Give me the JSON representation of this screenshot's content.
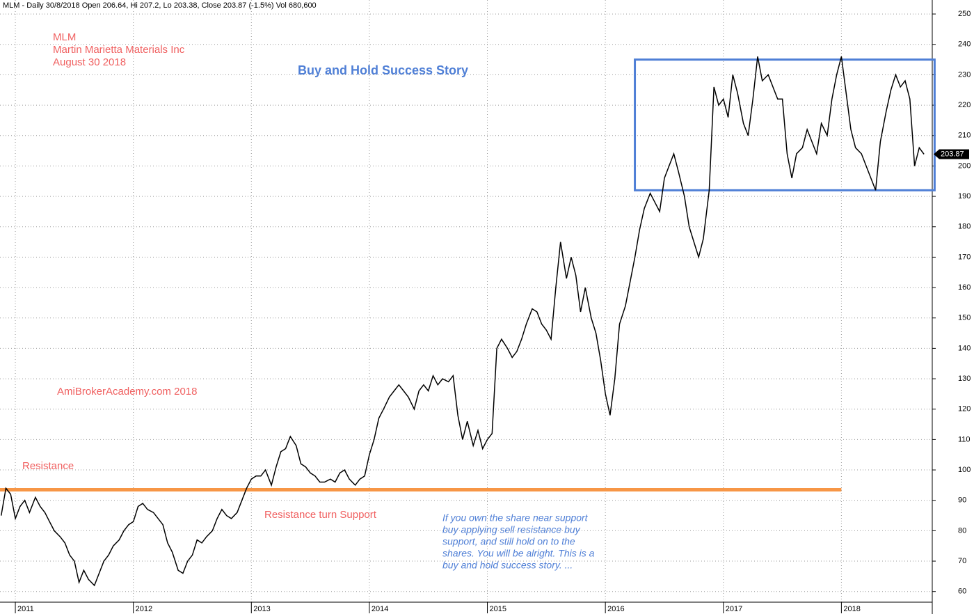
{
  "chart_data": {
    "type": "line",
    "title": "MLM - Daily 30/8/2018 Open 206.64, Hi 207.2, Lo 203.38, Close 203.87 (-1.5%) Vol 680,600",
    "annotations": {
      "symbol": "MLM",
      "company": "Martin Marietta Materials Inc",
      "date": "August 30 2018",
      "headline": "Buy and Hold Success Story",
      "site": "AmiBrokerAcademy.com  2018",
      "resistance": "Resistance",
      "support": "Resistance turn Support",
      "note": [
        "If you own the share near support",
        "buy applying sell resistance buy",
        "support, and still hold on to the",
        "shares. You will be alright. This is a",
        "buy and hold success story. ..."
      ]
    },
    "last_value": 203.87,
    "resistance_line": {
      "value": 93.5,
      "x": [
        2010.87,
        2018
      ],
      "color": "#f79646"
    },
    "range_box": {
      "x": [
        2016.25,
        2018.79
      ],
      "y": [
        192,
        235
      ],
      "color": "#4f7fd6"
    },
    "x": [
      2010.88,
      2010.92,
      2010.96,
      2011.0,
      2011.04,
      2011.08,
      2011.12,
      2011.17,
      2011.21,
      2011.25,
      2011.29,
      2011.33,
      2011.38,
      2011.42,
      2011.46,
      2011.5,
      2011.54,
      2011.58,
      2011.62,
      2011.67,
      2011.71,
      2011.75,
      2011.79,
      2011.83,
      2011.88,
      2011.92,
      2011.96,
      2012.0,
      2012.04,
      2012.08,
      2012.12,
      2012.17,
      2012.21,
      2012.25,
      2012.29,
      2012.33,
      2012.38,
      2012.42,
      2012.46,
      2012.5,
      2012.54,
      2012.58,
      2012.62,
      2012.67,
      2012.71,
      2012.75,
      2012.79,
      2012.83,
      2012.88,
      2012.92,
      2012.96,
      2013.0,
      2013.04,
      2013.08,
      2013.12,
      2013.17,
      2013.21,
      2013.25,
      2013.29,
      2013.33,
      2013.38,
      2013.42,
      2013.46,
      2013.5,
      2013.54,
      2013.58,
      2013.62,
      2013.67,
      2013.71,
      2013.75,
      2013.79,
      2013.83,
      2013.88,
      2013.92,
      2013.96,
      2014.0,
      2014.04,
      2014.08,
      2014.12,
      2014.17,
      2014.21,
      2014.25,
      2014.29,
      2014.33,
      2014.38,
      2014.42,
      2014.46,
      2014.5,
      2014.54,
      2014.58,
      2014.62,
      2014.67,
      2014.71,
      2014.75,
      2014.79,
      2014.83,
      2014.88,
      2014.92,
      2014.96,
      2015.0,
      2015.04,
      2015.08,
      2015.12,
      2015.17,
      2015.21,
      2015.25,
      2015.29,
      2015.33,
      2015.38,
      2015.42,
      2015.46,
      2015.5,
      2015.54,
      2015.58,
      2015.62,
      2015.67,
      2015.71,
      2015.75,
      2015.79,
      2015.83,
      2015.88,
      2015.92,
      2015.96,
      2016.0,
      2016.04,
      2016.08,
      2016.12,
      2016.17,
      2016.21,
      2016.25,
      2016.29,
      2016.33,
      2016.38,
      2016.42,
      2016.46,
      2016.5,
      2016.54,
      2016.58,
      2016.62,
      2016.67,
      2016.71,
      2016.75,
      2016.79,
      2016.83,
      2016.88,
      2016.92,
      2016.96,
      2017.0,
      2017.04,
      2017.08,
      2017.12,
      2017.17,
      2017.21,
      2017.25,
      2017.29,
      2017.33,
      2017.38,
      2017.42,
      2017.46,
      2017.5,
      2017.54,
      2017.58,
      2017.62,
      2017.67,
      2017.71,
      2017.75,
      2017.79,
      2017.83,
      2017.88,
      2017.92,
      2017.96,
      2018.0,
      2018.04,
      2018.08,
      2018.12,
      2018.17,
      2018.21,
      2018.25,
      2018.29,
      2018.33,
      2018.38,
      2018.42,
      2018.46,
      2018.5,
      2018.54,
      2018.58,
      2018.62,
      2018.66,
      2018.7
    ],
    "series": [
      {
        "name": "MLM",
        "color": "#000000",
        "values": [
          85,
          94,
          92,
          84,
          88,
          90,
          86,
          91,
          88,
          86,
          83,
          80,
          78,
          76,
          72,
          70,
          63,
          67,
          64,
          62,
          66,
          70,
          72,
          75,
          77,
          80,
          82,
          83,
          88,
          89,
          87,
          86,
          84,
          82,
          76,
          73,
          67,
          66,
          70,
          72,
          77,
          76,
          78,
          80,
          84,
          87,
          85,
          84,
          86,
          90,
          94,
          97,
          98,
          98,
          100,
          95,
          101,
          106,
          107,
          111,
          108,
          102,
          101,
          99,
          98,
          96,
          96,
          97,
          96,
          99,
          100,
          97,
          95,
          97,
          98,
          105,
          110,
          117,
          120,
          124,
          126,
          128,
          126,
          124,
          120,
          126,
          128,
          126,
          131,
          128,
          130,
          129,
          131,
          118,
          110,
          116,
          108,
          113,
          107,
          110,
          112,
          140,
          143,
          140,
          137,
          139,
          143,
          148,
          153,
          152,
          148,
          146,
          143,
          160,
          175,
          163,
          170,
          164,
          152,
          160,
          150,
          145,
          136,
          125,
          118,
          130,
          148,
          154,
          162,
          170,
          179,
          186,
          191,
          188,
          185,
          196,
          200,
          204,
          198,
          190,
          180,
          175,
          170,
          176,
          192,
          226,
          220,
          222,
          216,
          230,
          224,
          214,
          210,
          222,
          236,
          228,
          230,
          226,
          222,
          222,
          204,
          196,
          204,
          206,
          212,
          208,
          204,
          214,
          210,
          222,
          230,
          236,
          224,
          212,
          206,
          204,
          200,
          196,
          192,
          208,
          218,
          225,
          230,
          226,
          228,
          222,
          200,
          206,
          203.87
        ]
      }
    ],
    "xlim": [
      2010.87,
      2018.77
    ],
    "ylim": [
      56.5,
      254.6
    ],
    "xticks": [
      2011,
      2012,
      2013,
      2014,
      2015,
      2016,
      2017,
      2018
    ],
    "yticks": [
      60,
      70,
      80,
      90,
      100,
      110,
      120,
      130,
      140,
      150,
      160,
      170,
      180,
      190,
      200,
      210,
      220,
      230,
      240,
      250
    ],
    "grid": true
  }
}
